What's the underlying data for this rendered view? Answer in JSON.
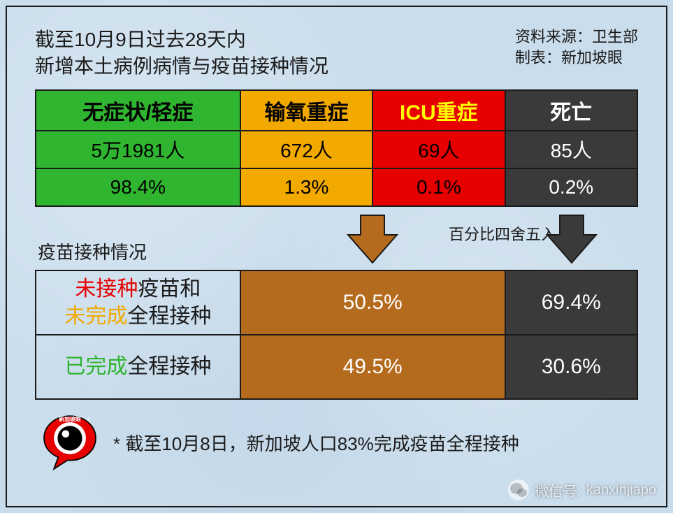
{
  "header": {
    "title_line1": "截至10月9日过去28天内",
    "title_line2": "新增本土病例病情与疫苗接种情况",
    "source_label": "资料来源：",
    "source_value": "卫生部",
    "author_label": "制表：",
    "author_value": "新加坡眼"
  },
  "top_table": {
    "col_widths_pct": [
      34,
      22,
      22,
      22
    ],
    "columns": [
      {
        "label": "无症状/轻症",
        "hdr_class": "col-green",
        "cell_class": "col-green",
        "count": "5万1981人",
        "pct": "98.4%"
      },
      {
        "label": "输氧重症",
        "hdr_class": "col-orange",
        "cell_class": "col-orange",
        "count": "672人",
        "pct": "1.3%"
      },
      {
        "label": "ICU重症",
        "hdr_class": "col-red-hdr",
        "cell_class": "col-red",
        "count": "69人",
        "pct": "0.1%"
      },
      {
        "label": "死亡",
        "hdr_class": "col-dark",
        "cell_class": "col-dark",
        "count": "85人",
        "pct": "0.2%"
      }
    ]
  },
  "arrows": {
    "vaccination_label": "疫苗接种情况",
    "rounding_note": "百分比四舍五入",
    "brown_arrow_color": "#b46b1e",
    "dark_arrow_color": "#3a3a3a",
    "stroke": "#1a1a1a"
  },
  "bottom_table": {
    "col_widths_pct": [
      34,
      44,
      22
    ],
    "rows": [
      {
        "label_parts": [
          {
            "text": "未接种",
            "class": "c-red"
          },
          {
            "text": "疫苗和",
            "class": ""
          },
          {
            "text": "\n",
            "class": ""
          },
          {
            "text": "未完成",
            "class": "c-orange"
          },
          {
            "text": "全程接种",
            "class": ""
          }
        ],
        "brown": "50.5%",
        "dark": "69.4%"
      },
      {
        "label_parts": [
          {
            "text": "已完成",
            "class": "c-green"
          },
          {
            "text": "全程接种",
            "class": ""
          }
        ],
        "brown": "49.5%",
        "dark": "30.6%"
      }
    ]
  },
  "footer": {
    "logo_text": "新加坡眼",
    "note": "* 截至10月8日，新加坡人口83%完成疫苗全程接种"
  },
  "watermark": {
    "label": "微信号:",
    "value": "kanxinjiapo"
  },
  "colors": {
    "green": "#2fb52f",
    "orange": "#f2a900",
    "red": "#e60000",
    "dark": "#3a3a3a",
    "brown": "#b46b1e",
    "border": "#1a1a1a",
    "bg": "#c6d9e8"
  }
}
